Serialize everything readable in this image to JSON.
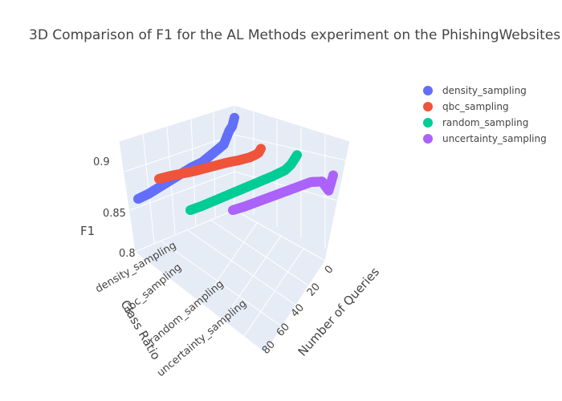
{
  "title": "3D Comparison of F1 for the AL Methods experiment on the PhishingWebsites",
  "chart_data": {
    "type": "scatter3d",
    "title": "3D Comparison of F1 for the AL Methods experiment on the PhishingWebsites",
    "axes": {
      "x": {
        "label": "Number of Queries",
        "ticks": [
          "0",
          "20",
          "40",
          "60",
          "80"
        ],
        "range": [
          0,
          90
        ]
      },
      "y": {
        "label": "Class Ratio",
        "ticks": [
          "density_sampling",
          "qbc_sampling",
          "random_sampling",
          "uncertainty_sampling"
        ]
      },
      "z": {
        "label": "F1",
        "ticks": [
          "0.8",
          "0.85",
          "0.9"
        ],
        "range": [
          0.78,
          0.92
        ]
      }
    },
    "legend": {
      "placement": "top-right"
    },
    "series": [
      {
        "name": "density_sampling",
        "color": "#636efa",
        "trend": [
          [
            0,
            0.91
          ],
          [
            2,
            0.9
          ],
          [
            5,
            0.895
          ],
          [
            10,
            0.88
          ],
          [
            20,
            0.875
          ],
          [
            30,
            0.87
          ],
          [
            40,
            0.87
          ],
          [
            50,
            0.868
          ],
          [
            60,
            0.866
          ],
          [
            70,
            0.864
          ],
          [
            80,
            0.862
          ],
          [
            90,
            0.862
          ]
        ]
      },
      {
        "name": "qbc_sampling",
        "color": "#ef553b",
        "trend": [
          [
            0,
            0.895
          ],
          [
            2,
            0.89
          ],
          [
            5,
            0.888
          ],
          [
            10,
            0.886
          ],
          [
            20,
            0.885
          ],
          [
            30,
            0.885
          ],
          [
            40,
            0.884
          ],
          [
            50,
            0.883
          ],
          [
            60,
            0.882
          ],
          [
            70,
            0.882
          ],
          [
            80,
            0.882
          ],
          [
            90,
            0.881
          ]
        ]
      },
      {
        "name": "random_sampling",
        "color": "#00cc96",
        "trend": [
          [
            0,
            0.89
          ],
          [
            5,
            0.88
          ],
          [
            10,
            0.875
          ],
          [
            20,
            0.873
          ],
          [
            30,
            0.872
          ],
          [
            40,
            0.871
          ],
          [
            50,
            0.87
          ],
          [
            60,
            0.869
          ],
          [
            70,
            0.868
          ],
          [
            80,
            0.867
          ],
          [
            90,
            0.867
          ]
        ]
      },
      {
        "name": "uncertainty_sampling",
        "color": "#ab63fa",
        "trend": [
          [
            0,
            0.88
          ],
          [
            2,
            0.87
          ],
          [
            4,
            0.86
          ],
          [
            6,
            0.865
          ],
          [
            10,
            0.875
          ],
          [
            20,
            0.878
          ],
          [
            30,
            0.876
          ],
          [
            40,
            0.874
          ],
          [
            50,
            0.872
          ],
          [
            60,
            0.87
          ],
          [
            70,
            0.868
          ],
          [
            80,
            0.866
          ],
          [
            90,
            0.865
          ]
        ]
      }
    ]
  }
}
